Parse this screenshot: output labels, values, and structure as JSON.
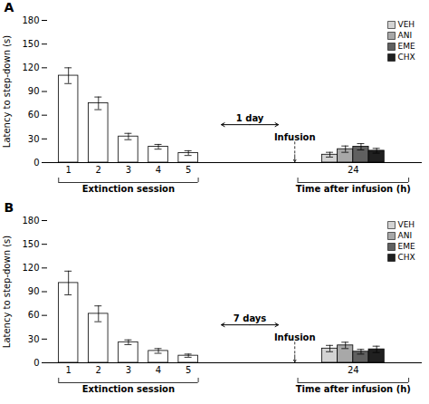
{
  "chart_data": [
    {
      "type": "bar",
      "title": "A",
      "ylabel": "Latency to step-down (s)",
      "ylim": [
        0,
        180
      ],
      "yticks": [
        0,
        30,
        60,
        90,
        120,
        150,
        180
      ],
      "legend": "upper right",
      "annotations": [
        "1 day",
        "Infusion"
      ],
      "groups": [
        {
          "xlabel": "Extinction session",
          "categories": [
            "1",
            "2",
            "3",
            "4",
            "5"
          ],
          "values": [
            110,
            75,
            33,
            20,
            12
          ],
          "errors": [
            10,
            8,
            4,
            3,
            3
          ],
          "color": "#ffffff"
        },
        {
          "xlabel": "Time after infusion (h)",
          "categories": [
            "24"
          ],
          "series": [
            {
              "name": "VEH",
              "color": "#d3d3d3",
              "values": [
                10
              ],
              "errors": [
                3
              ]
            },
            {
              "name": "ANI",
              "color": "#a8a8a8",
              "values": [
                17
              ],
              "errors": [
                4
              ]
            },
            {
              "name": "EME",
              "color": "#606060",
              "values": [
                20
              ],
              "errors": [
                4
              ]
            },
            {
              "name": "CHX",
              "color": "#202020",
              "values": [
                15
              ],
              "errors": [
                3
              ]
            }
          ]
        }
      ]
    },
    {
      "type": "bar",
      "title": "B",
      "ylabel": "Latency to step-down (s)",
      "ylim": [
        0,
        180
      ],
      "yticks": [
        0,
        30,
        60,
        90,
        120,
        150,
        180
      ],
      "legend": "upper right",
      "annotations": [
        "7 days",
        "Infusion"
      ],
      "groups": [
        {
          "xlabel": "Extinction session",
          "categories": [
            "1",
            "2",
            "3",
            "4",
            "5"
          ],
          "values": [
            101,
            62,
            26,
            15,
            9
          ],
          "errors": [
            15,
            10,
            3,
            3,
            2
          ],
          "color": "#ffffff"
        },
        {
          "xlabel": "Time after infusion (h)",
          "categories": [
            "24"
          ],
          "series": [
            {
              "name": "VEH",
              "color": "#d3d3d3",
              "values": [
                18
              ],
              "errors": [
                4
              ]
            },
            {
              "name": "ANI",
              "color": "#a8a8a8",
              "values": [
                22
              ],
              "errors": [
                4
              ]
            },
            {
              "name": "EME",
              "color": "#606060",
              "values": [
                14
              ],
              "errors": [
                3
              ]
            },
            {
              "name": "CHX",
              "color": "#202020",
              "values": [
                17
              ],
              "errors": [
                4
              ]
            }
          ]
        }
      ]
    }
  ]
}
